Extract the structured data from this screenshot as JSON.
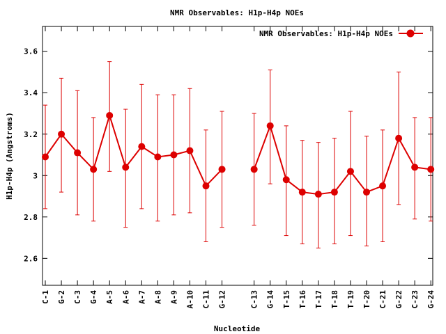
{
  "chart_data": {
    "type": "line",
    "title": "NMR Observables: H1p-H4p NOEs",
    "xlabel": "Nucleotide",
    "ylabel": "H1p-H4p (Angstroms)",
    "ylim": [
      2.47,
      3.72
    ],
    "yticks": [
      2.6,
      2.8,
      3,
      3.2,
      3.4,
      3.6
    ],
    "ytick_labels": [
      "2.6",
      "2.8",
      "3",
      "3.2",
      "3.4",
      "3.6"
    ],
    "grid": false,
    "legend_position": "top-right",
    "color": "#dd0000",
    "series": [
      {
        "name": "NMR Observables: H1p-H4p NOEs",
        "segments": [
          {
            "categories": [
              "C-1",
              "G-2",
              "C-3",
              "G-4",
              "A-5",
              "A-6",
              "A-7",
              "A-8",
              "A-9",
              "A-10",
              "C-11",
              "G-12"
            ],
            "values": [
              3.09,
              3.2,
              3.11,
              3.03,
              3.29,
              3.04,
              3.14,
              3.09,
              3.1,
              3.12,
              2.95,
              3.03
            ],
            "error_low": [
              2.84,
              2.92,
              2.81,
              2.78,
              3.02,
              2.75,
              2.84,
              2.78,
              2.81,
              2.82,
              2.68,
              2.75
            ],
            "error_high": [
              3.34,
              3.47,
              3.41,
              3.28,
              3.55,
              3.32,
              3.44,
              3.39,
              3.39,
              3.42,
              3.22,
              3.31
            ]
          },
          {
            "categories": [
              "C-13",
              "G-14",
              "T-15",
              "T-16",
              "T-17",
              "T-18",
              "T-19",
              "T-20",
              "C-21",
              "G-22",
              "C-23",
              "G-24"
            ],
            "values": [
              3.03,
              3.24,
              2.98,
              2.92,
              2.91,
              2.92,
              3.02,
              2.92,
              2.95,
              3.18,
              3.04,
              3.03
            ],
            "error_low": [
              2.76,
              2.96,
              2.71,
              2.67,
              2.65,
              2.67,
              2.71,
              2.66,
              2.68,
              2.86,
              2.79,
              2.78
            ],
            "error_high": [
              3.3,
              3.51,
              3.24,
              3.17,
              3.16,
              3.18,
              3.31,
              3.19,
              3.22,
              3.5,
              3.28,
              3.28
            ]
          }
        ]
      }
    ]
  }
}
